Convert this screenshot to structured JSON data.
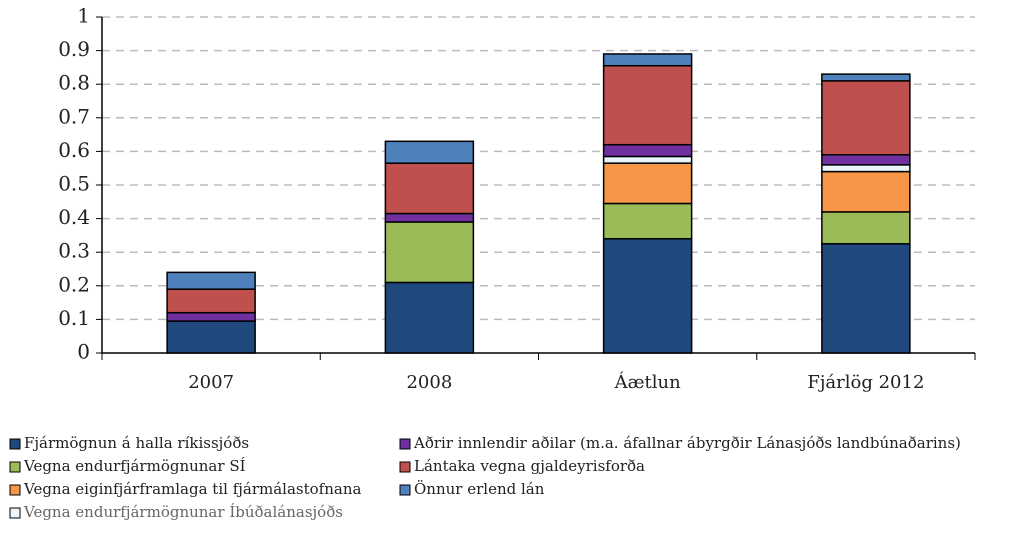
{
  "chart_data": {
    "type": "stacked_bar",
    "categories": [
      "2007",
      "2008",
      "Áætlun",
      "Fjárlög 2012"
    ],
    "series": [
      {
        "name": "Fjármögnun á halla ríkissjóðs",
        "color": "#1f497d",
        "values": [
          0.095,
          0.21,
          0.34,
          0.325
        ]
      },
      {
        "name": "Vegna endurfjármögnunar SÍ",
        "color": "#9bbb59",
        "values": [
          0,
          0.18,
          0.105,
          0.095
        ]
      },
      {
        "name": "Vegna eiginfjárframlaga til fjármálastofnana",
        "color": "#f79646",
        "values": [
          0,
          0,
          0.12,
          0.12
        ]
      },
      {
        "name": "Vegna endurfjármögnunar Íbúðalánasjóðs",
        "color": "#eaf6fb",
        "values": [
          0,
          0,
          0.02,
          0.02
        ]
      },
      {
        "name": "Aðrir innlendir aðilar (m.a. áfallnar ábyrgðir Lánasjóðs landbúnaðarins)",
        "color": "#7030a0",
        "values": [
          0.025,
          0.025,
          0.035,
          0.03
        ]
      },
      {
        "name": "Lántaka vegna gjaldeyrisforða",
        "color": "#c0504d",
        "values": [
          0.07,
          0.15,
          0.235,
          0.22
        ]
      },
      {
        "name": "Önnur erlend lán",
        "color": "#4f81bd",
        "values": [
          0.05,
          0.065,
          0.035,
          0.02
        ]
      }
    ],
    "ylim": [
      0,
      1
    ],
    "yticks": [
      0,
      0.1,
      0.2,
      0.3,
      0.4,
      0.5,
      0.6,
      0.7,
      0.8,
      0.9,
      1
    ],
    "grid": true
  }
}
